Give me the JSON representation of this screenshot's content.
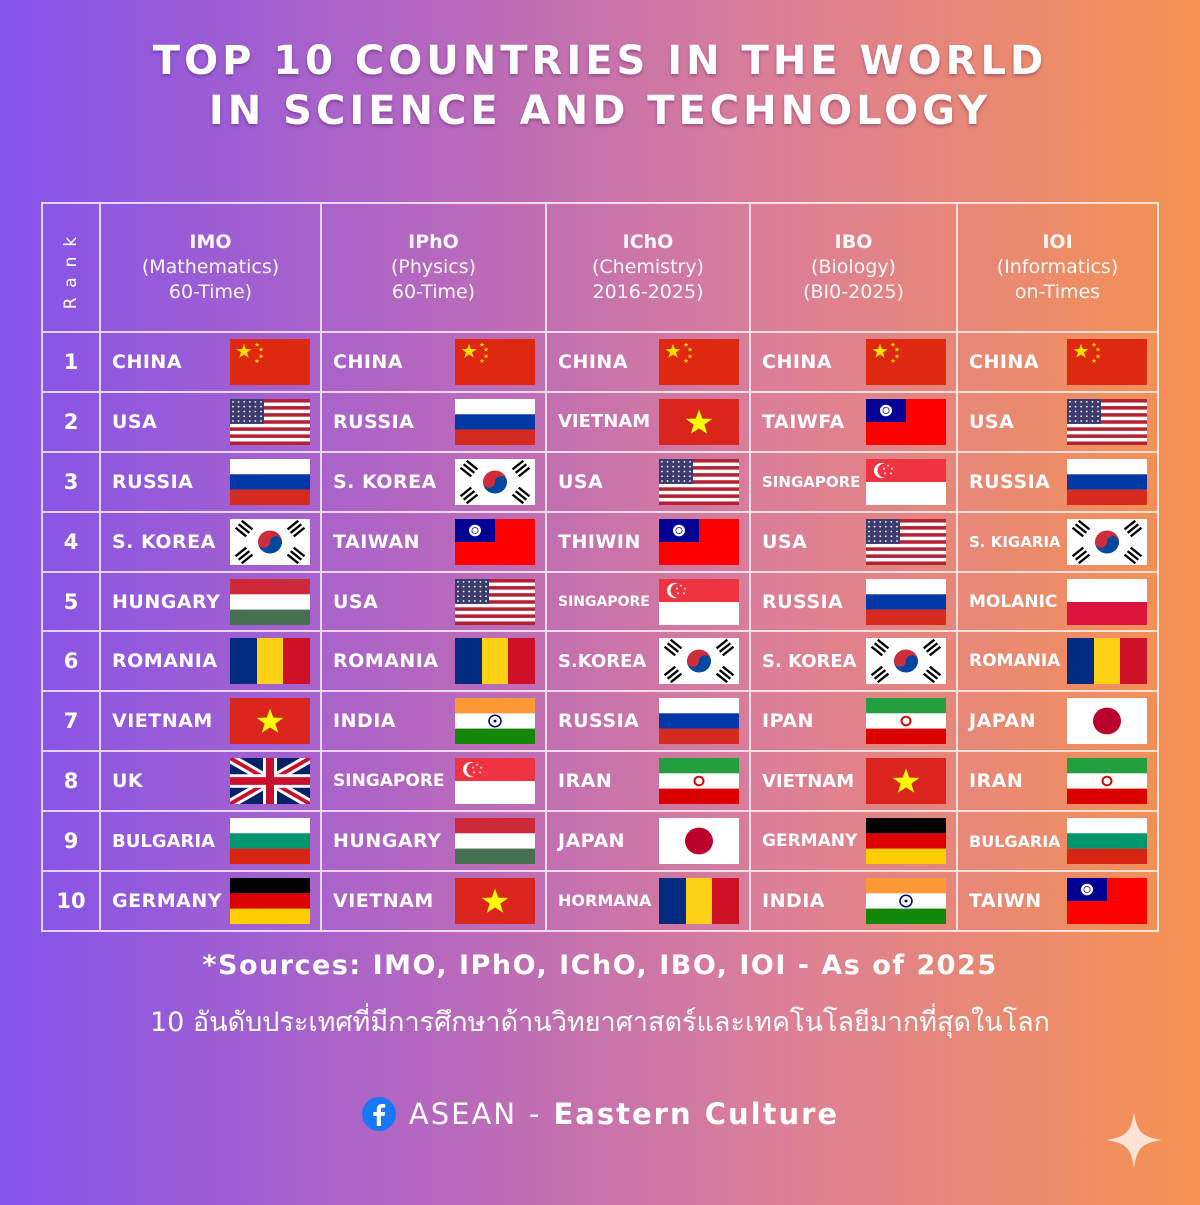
{
  "header": {
    "title_line1": "TOP 10 COUNTRIES IN THE WORLD",
    "title_line2": "IN SCIENCE AND TECHNOLOGY"
  },
  "table": {
    "rank_header": "Rank",
    "columns": [
      {
        "name": "IMO",
        "subject": "(Mathematics)",
        "note": "60-Time)"
      },
      {
        "name": "IPhO",
        "subject": "(Physics)",
        "note": "60-Time)"
      },
      {
        "name": "IChO",
        "subject": "(Chemistry)",
        "note": "2016-2025)"
      },
      {
        "name": "IBO",
        "subject": "(Biology)",
        "note": "(BI0-2025)"
      },
      {
        "name": "IOI",
        "subject": "(Informatics)",
        "note": "on-Times"
      }
    ],
    "rows": [
      {
        "rank": 1,
        "cells": [
          "CHINA",
          "CHINA",
          "CHINA",
          "CHINA",
          "CHINA"
        ]
      },
      {
        "rank": 2,
        "cells": [
          "USA",
          "RUSSIA",
          "VIETNAM",
          "TAIWFA",
          "USA"
        ]
      },
      {
        "rank": 3,
        "cells": [
          "RUSSIA",
          "S. KOREA",
          "USA",
          "SINGAPORE",
          "RUSSIA"
        ]
      },
      {
        "rank": 4,
        "cells": [
          "S. KOREA",
          "TAIWAN",
          "THIWIN",
          "USA",
          "S. KIGARIA"
        ]
      },
      {
        "rank": 5,
        "cells": [
          "HUNGARY",
          "USA",
          "SINGAPORE",
          "RUSSIA",
          "MOLANIC"
        ]
      },
      {
        "rank": 6,
        "cells": [
          "ROMANIA",
          "ROMANIA",
          "S.KOREA",
          "S. KOREA",
          "ROMANIA"
        ]
      },
      {
        "rank": 7,
        "cells": [
          "VIETNAM",
          "INDIA",
          "RUSSIA",
          "IPAN",
          "JAPAN"
        ]
      },
      {
        "rank": 8,
        "cells": [
          "UK",
          "SINGAPORE",
          "IRAN",
          "VIETNAM",
          "IRAN"
        ]
      },
      {
        "rank": 9,
        "cells": [
          "BULGARIA",
          "HUNGARY",
          "JAPAN",
          "GERMANY",
          "BULGARIA"
        ]
      },
      {
        "rank": 10,
        "cells": [
          "GERMANY",
          "VIETNAM",
          "HORMANA",
          "INDIA",
          "TAIWN"
        ]
      }
    ]
  },
  "footer": {
    "sources": "*Sources: IMO, IPhO, IChO, IBO, IOI - As of 2025",
    "thai": "10 อันดับประเทศที่มีการศึกษาด้านวิทยาศาสตร์และเทคโนโลยีมากที่สุดในโลก",
    "brand_name": "ASEAN",
    "brand_separator": "-",
    "brand_tagline": "Eastern Culture"
  }
}
